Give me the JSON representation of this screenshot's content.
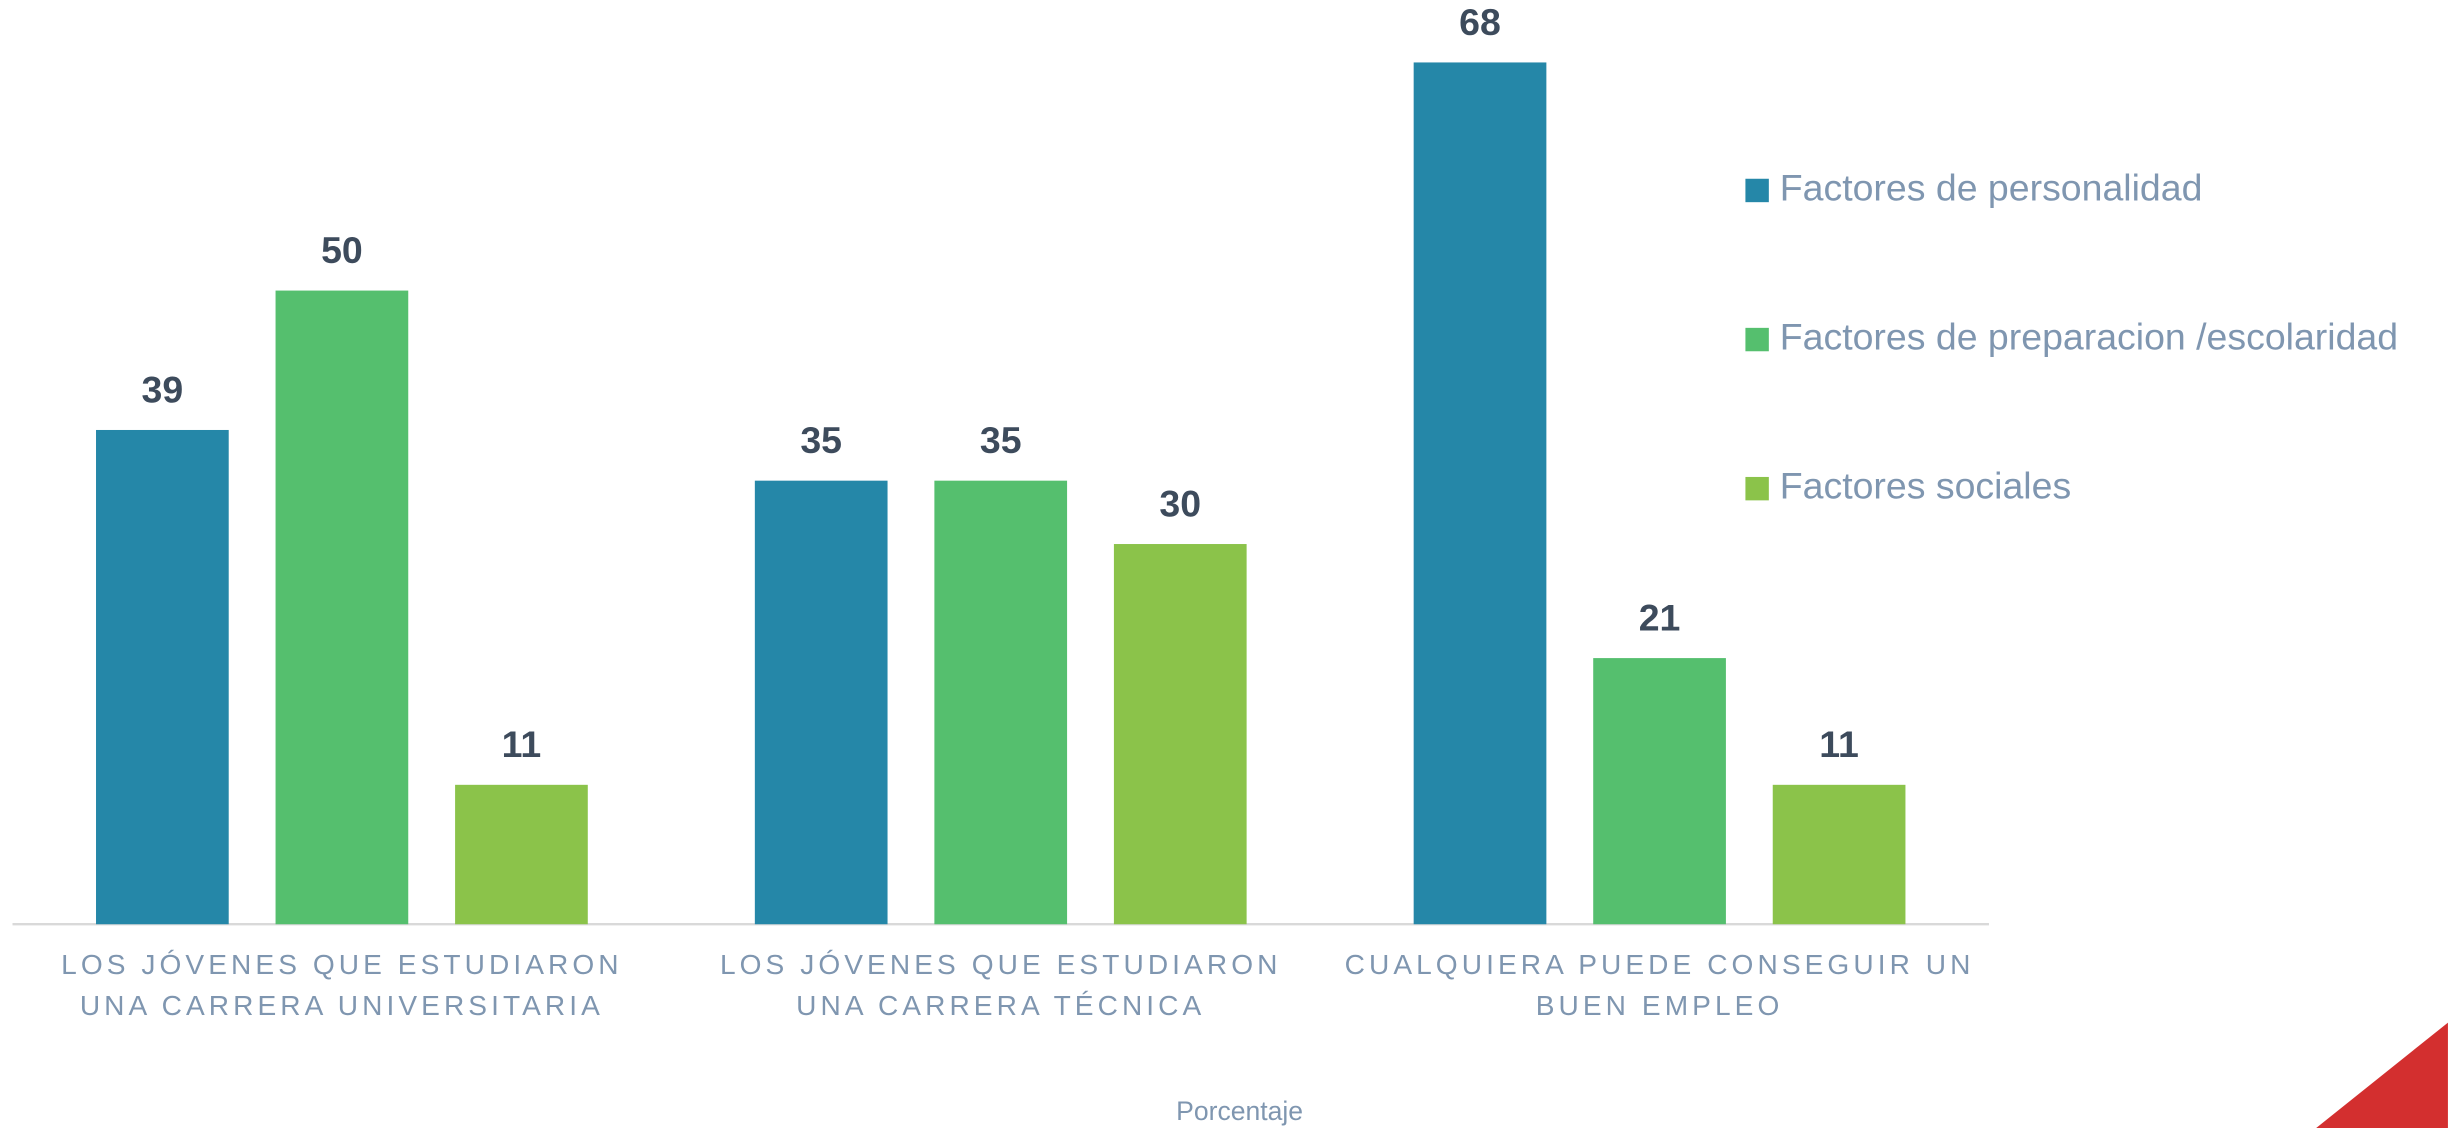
{
  "chart_data": {
    "type": "bar",
    "categories": [
      "LOS JÓVENES QUE ESTUDIARON UNA CARRERA UNIVERSITARIA",
      "LOS JÓVENES QUE ESTUDIARON UNA CARRERA TÉCNICA",
      "CUALQUIERA PUEDE CONSEGUIR UN BUEN EMPLEO"
    ],
    "series": [
      {
        "name": "Factores de personalidad",
        "color": "#2587a8",
        "values": [
          39,
          35,
          68
        ]
      },
      {
        "name": "Factores de preparacion /escolaridad",
        "color": "#55bf6e",
        "values": [
          50,
          35,
          21
        ]
      },
      {
        "name": "Factores sociales",
        "color": "#8bc34a",
        "values": [
          11,
          30,
          11
        ]
      }
    ],
    "x_label": "Porcentaje",
    "ylim": [
      0,
      68
    ],
    "legend": "right"
  }
}
